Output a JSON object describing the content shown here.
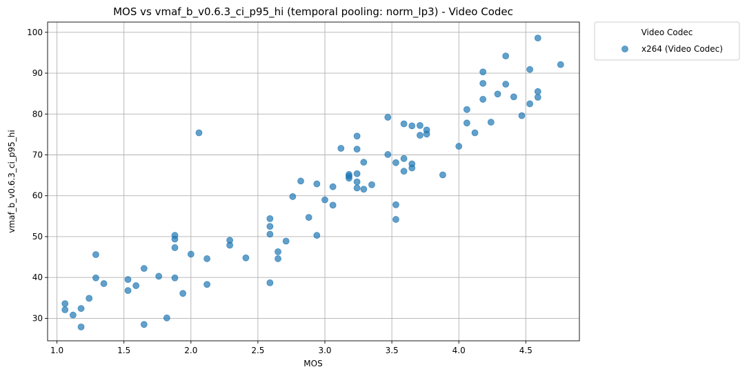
{
  "chart_data": {
    "type": "scatter",
    "title": "MOS vs vmaf_b_v0.6.3_ci_p95_hi (temporal pooling: norm_lp3) - Video Codec",
    "xlabel": "MOS",
    "ylabel": "vmaf_b_v0.6.3_ci_p95_hi",
    "xlim": [
      0.93,
      4.9
    ],
    "ylim": [
      24.5,
      102.5
    ],
    "xticks": [
      "1.0",
      "1.5",
      "2.0",
      "2.5",
      "3.0",
      "3.5",
      "4.0",
      "4.5"
    ],
    "yticks": [
      "30",
      "40",
      "50",
      "60",
      "70",
      "80",
      "90",
      "100"
    ],
    "grid": true,
    "legend_title": "Video Codec",
    "legend_position": "outside-top-right",
    "series": [
      {
        "name": "x264 (Video Codec)",
        "color": "#1f77b4",
        "points": [
          [
            1.06,
            33.6
          ],
          [
            1.06,
            32.1
          ],
          [
            1.12,
            30.8
          ],
          [
            1.18,
            32.4
          ],
          [
            1.18,
            27.9
          ],
          [
            1.24,
            34.9
          ],
          [
            1.29,
            45.6
          ],
          [
            1.29,
            39.9
          ],
          [
            1.35,
            38.5
          ],
          [
            1.53,
            39.5
          ],
          [
            1.53,
            36.8
          ],
          [
            1.59,
            38.0
          ],
          [
            1.65,
            42.2
          ],
          [
            1.65,
            28.5
          ],
          [
            1.76,
            40.3
          ],
          [
            1.82,
            30.1
          ],
          [
            1.88,
            50.3
          ],
          [
            1.88,
            49.4
          ],
          [
            1.88,
            47.3
          ],
          [
            1.88,
            39.9
          ],
          [
            1.94,
            36.1
          ],
          [
            2.0,
            45.7
          ],
          [
            2.06,
            75.4
          ],
          [
            2.12,
            44.6
          ],
          [
            2.12,
            38.3
          ],
          [
            2.29,
            49.1
          ],
          [
            2.29,
            47.9
          ],
          [
            2.41,
            44.8
          ],
          [
            2.59,
            54.4
          ],
          [
            2.59,
            52.5
          ],
          [
            2.59,
            50.6
          ],
          [
            2.59,
            38.7
          ],
          [
            2.65,
            46.3
          ],
          [
            2.65,
            44.6
          ],
          [
            2.71,
            48.9
          ],
          [
            2.76,
            59.8
          ],
          [
            2.82,
            63.6
          ],
          [
            2.88,
            54.7
          ],
          [
            2.94,
            62.9
          ],
          [
            2.94,
            50.3
          ],
          [
            3.0,
            59.0
          ],
          [
            3.06,
            62.2
          ],
          [
            3.06,
            57.7
          ],
          [
            3.12,
            71.6
          ],
          [
            3.18,
            65.2
          ],
          [
            3.18,
            64.8
          ],
          [
            3.18,
            64.3
          ],
          [
            3.24,
            74.6
          ],
          [
            3.24,
            71.4
          ],
          [
            3.24,
            65.4
          ],
          [
            3.24,
            63.4
          ],
          [
            3.24,
            61.9
          ],
          [
            3.29,
            68.2
          ],
          [
            3.29,
            61.6
          ],
          [
            3.35,
            62.7
          ],
          [
            3.47,
            79.2
          ],
          [
            3.47,
            70.1
          ],
          [
            3.53,
            68.1
          ],
          [
            3.53,
            57.8
          ],
          [
            3.53,
            54.2
          ],
          [
            3.59,
            77.6
          ],
          [
            3.59,
            69.1
          ],
          [
            3.59,
            66.0
          ],
          [
            3.65,
            77.1
          ],
          [
            3.65,
            67.8
          ],
          [
            3.65,
            66.8
          ],
          [
            3.71,
            77.2
          ],
          [
            3.71,
            74.8
          ],
          [
            3.76,
            76.1
          ],
          [
            3.76,
            75.1
          ],
          [
            3.88,
            65.1
          ],
          [
            4.0,
            72.1
          ],
          [
            4.06,
            81.1
          ],
          [
            4.06,
            77.8
          ],
          [
            4.12,
            75.4
          ],
          [
            4.18,
            90.3
          ],
          [
            4.18,
            87.5
          ],
          [
            4.18,
            83.6
          ],
          [
            4.24,
            78.0
          ],
          [
            4.29,
            84.9
          ],
          [
            4.35,
            94.2
          ],
          [
            4.35,
            87.3
          ],
          [
            4.41,
            84.2
          ],
          [
            4.47,
            79.6
          ],
          [
            4.53,
            90.9
          ],
          [
            4.53,
            82.5
          ],
          [
            4.59,
            98.6
          ],
          [
            4.59,
            85.5
          ],
          [
            4.59,
            84.1
          ],
          [
            4.76,
            92.1
          ]
        ]
      }
    ]
  }
}
